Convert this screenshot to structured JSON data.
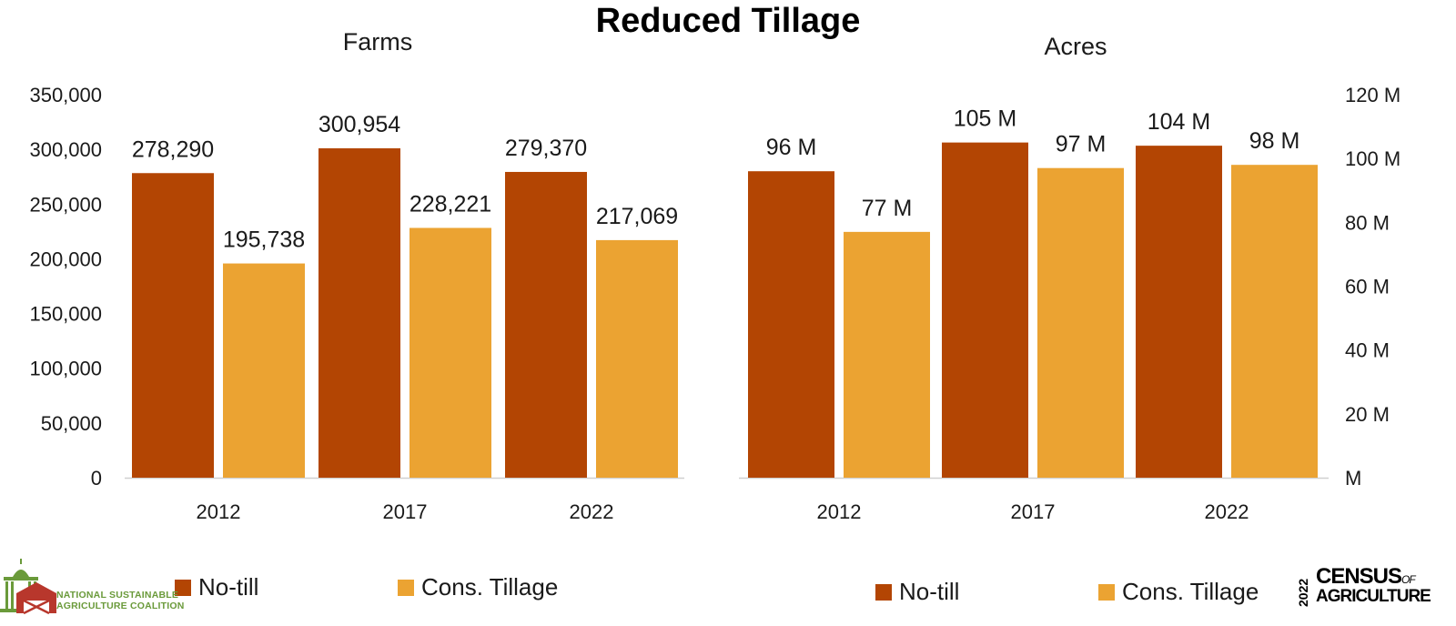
{
  "title": "Reduced Tillage",
  "colors": {
    "no_till": "#b34503",
    "cons_tillage": "#eba332"
  },
  "chart_data": [
    {
      "type": "bar",
      "title": "Farms",
      "categories": [
        "2012",
        "2017",
        "2022"
      ],
      "series": [
        {
          "name": "No-till",
          "values": [
            278290,
            300954,
            279370
          ],
          "labels": [
            "278,290",
            "300,954",
            "279,370"
          ]
        },
        {
          "name": "Cons. Tillage",
          "values": [
            195738,
            228221,
            217069
          ],
          "labels": [
            "195,738",
            "228,221",
            "217,069"
          ]
        }
      ],
      "ylim": [
        0,
        350000
      ],
      "yticks": [
        "0",
        "50,000",
        "100,000",
        "150,000",
        "200,000",
        "250,000",
        "300,000",
        "350,000"
      ],
      "y_axis_side": "left",
      "grid": false,
      "legend": "bottom"
    },
    {
      "type": "bar",
      "title": "Acres",
      "categories": [
        "2012",
        "2017",
        "2022"
      ],
      "series": [
        {
          "name": "No-till",
          "values": [
            96,
            105,
            104
          ],
          "labels": [
            "96 M",
            "105 M",
            "104 M"
          ]
        },
        {
          "name": "Cons. Tillage",
          "values": [
            77,
            97,
            98
          ],
          "labels": [
            "77 M",
            "97 M",
            "98 M"
          ]
        }
      ],
      "units": "millions of acres",
      "ylim": [
        0,
        120
      ],
      "yticks": [
        "M",
        "20 M",
        "40 M",
        "60 M",
        "80 M",
        "100 M",
        "120 M"
      ],
      "y_axis_side": "right",
      "grid": false,
      "legend": "bottom"
    }
  ],
  "legends": [
    {
      "items": [
        "No-till",
        "Cons. Tillage"
      ]
    },
    {
      "items": [
        "No-till",
        "Cons. Tillage"
      ]
    }
  ],
  "logos": {
    "nsac": {
      "icon": "capitol-barn-icon",
      "line1": "NATIONAL SUSTAINABLE",
      "line2": "AGRICULTURE COALITION"
    },
    "census": {
      "year": "2022",
      "word": "CENSUS",
      "of": "OF",
      "line2": "AGRICULTURE"
    }
  }
}
